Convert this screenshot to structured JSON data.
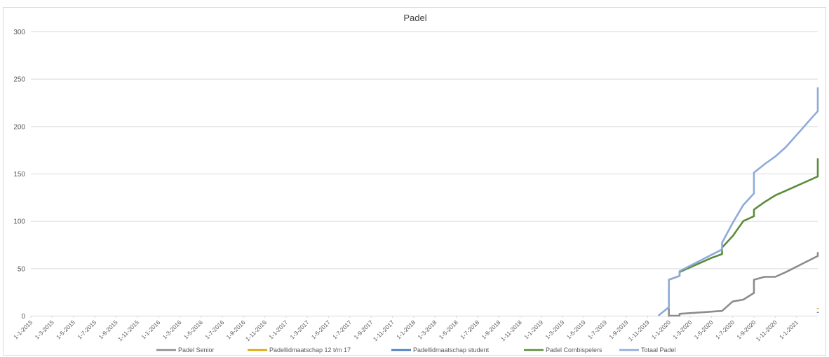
{
  "chart_data": {
    "type": "line",
    "title": "Padel",
    "xlabel": "",
    "ylabel": "",
    "ylim": [
      0,
      300
    ],
    "yticks": [
      0,
      50,
      100,
      150,
      200,
      250,
      300
    ],
    "grid": true,
    "legend_position": "bottom",
    "x_range": [
      "2015-01-01",
      "2021-03-01"
    ],
    "x_tick_labels": [
      "1-1-2015",
      "1-3-2015",
      "1-5-2015",
      "1-7-2015",
      "1-9-2015",
      "1-11-2015",
      "1-1-2016",
      "1-3-2016",
      "1-5-2016",
      "1-7-2016",
      "1-9-2016",
      "1-11-2016",
      "1-1-2017",
      "1-3-2017",
      "1-5-2017",
      "1-7-2017",
      "1-9-2017",
      "1-11-2017",
      "1-1-2018",
      "1-3-2018",
      "1-5-2018",
      "1-7-2018",
      "1-9-2018",
      "1-11-2018",
      "1-1-2019",
      "1-3-2019",
      "1-5-2019",
      "1-7-2019",
      "1-9-2019",
      "1-11-2019",
      "1-1-2020",
      "1-3-2020",
      "1-5-2020",
      "1-7-2020",
      "1-9-2020",
      "1-11-2020",
      "1-1-2021"
    ],
    "series": [
      {
        "name": "Padel Senior",
        "color": "#8c8c8c",
        "points": [
          [
            "2020-01-01",
            8
          ],
          [
            "2020-01-01",
            0
          ],
          [
            "2020-02-01",
            0
          ],
          [
            "2020-02-01",
            2
          ],
          [
            "2020-06-01",
            5
          ],
          [
            "2020-07-01",
            15
          ],
          [
            "2020-08-01",
            17
          ],
          [
            "2020-09-01",
            24
          ],
          [
            "2020-09-01",
            38
          ],
          [
            "2020-10-01",
            41
          ],
          [
            "2020-11-01",
            41
          ],
          [
            "2020-12-01",
            46
          ],
          [
            "2021-03-01",
            63
          ],
          [
            "2021-03-01",
            67
          ]
        ]
      },
      {
        "name": "Padellidmaatschap 12 t/m 17",
        "color": "#d9a400",
        "points": [
          [
            "2021-03-01",
            7
          ],
          [
            "2021-03-01",
            8
          ]
        ]
      },
      {
        "name": "Padellidmaatschap student",
        "color": "#3f78c0",
        "points": [
          [
            "2021-03-01",
            3
          ],
          [
            "2021-03-01",
            4
          ]
        ]
      },
      {
        "name": "Padel Combispelers",
        "color": "#5b8c3a",
        "points": [
          [
            "2020-01-01",
            38
          ],
          [
            "2020-02-01",
            42
          ],
          [
            "2020-02-01",
            46
          ],
          [
            "2020-05-01",
            61
          ],
          [
            "2020-06-01",
            65
          ],
          [
            "2020-06-01",
            72
          ],
          [
            "2020-07-01",
            84
          ],
          [
            "2020-08-01",
            100
          ],
          [
            "2020-09-01",
            105
          ],
          [
            "2020-09-01",
            112
          ],
          [
            "2020-10-01",
            120
          ],
          [
            "2020-11-01",
            127
          ],
          [
            "2020-12-01",
            132
          ],
          [
            "2021-03-01",
            147
          ],
          [
            "2021-03-01",
            166
          ]
        ]
      },
      {
        "name": "Totaal Padel",
        "color": "#8eaadb",
        "points": [
          [
            "2019-12-01",
            0
          ],
          [
            "2020-01-01",
            9
          ],
          [
            "2020-01-01",
            38
          ],
          [
            "2020-02-01",
            42
          ],
          [
            "2020-02-01",
            47
          ],
          [
            "2020-06-01",
            70
          ],
          [
            "2020-06-01",
            77
          ],
          [
            "2020-07-01",
            98
          ],
          [
            "2020-08-01",
            117
          ],
          [
            "2020-09-01",
            129
          ],
          [
            "2020-09-01",
            151
          ],
          [
            "2020-10-01",
            160
          ],
          [
            "2020-11-01",
            168
          ],
          [
            "2020-12-01",
            178
          ],
          [
            "2021-03-01",
            216
          ],
          [
            "2021-03-01",
            241
          ]
        ]
      }
    ]
  }
}
